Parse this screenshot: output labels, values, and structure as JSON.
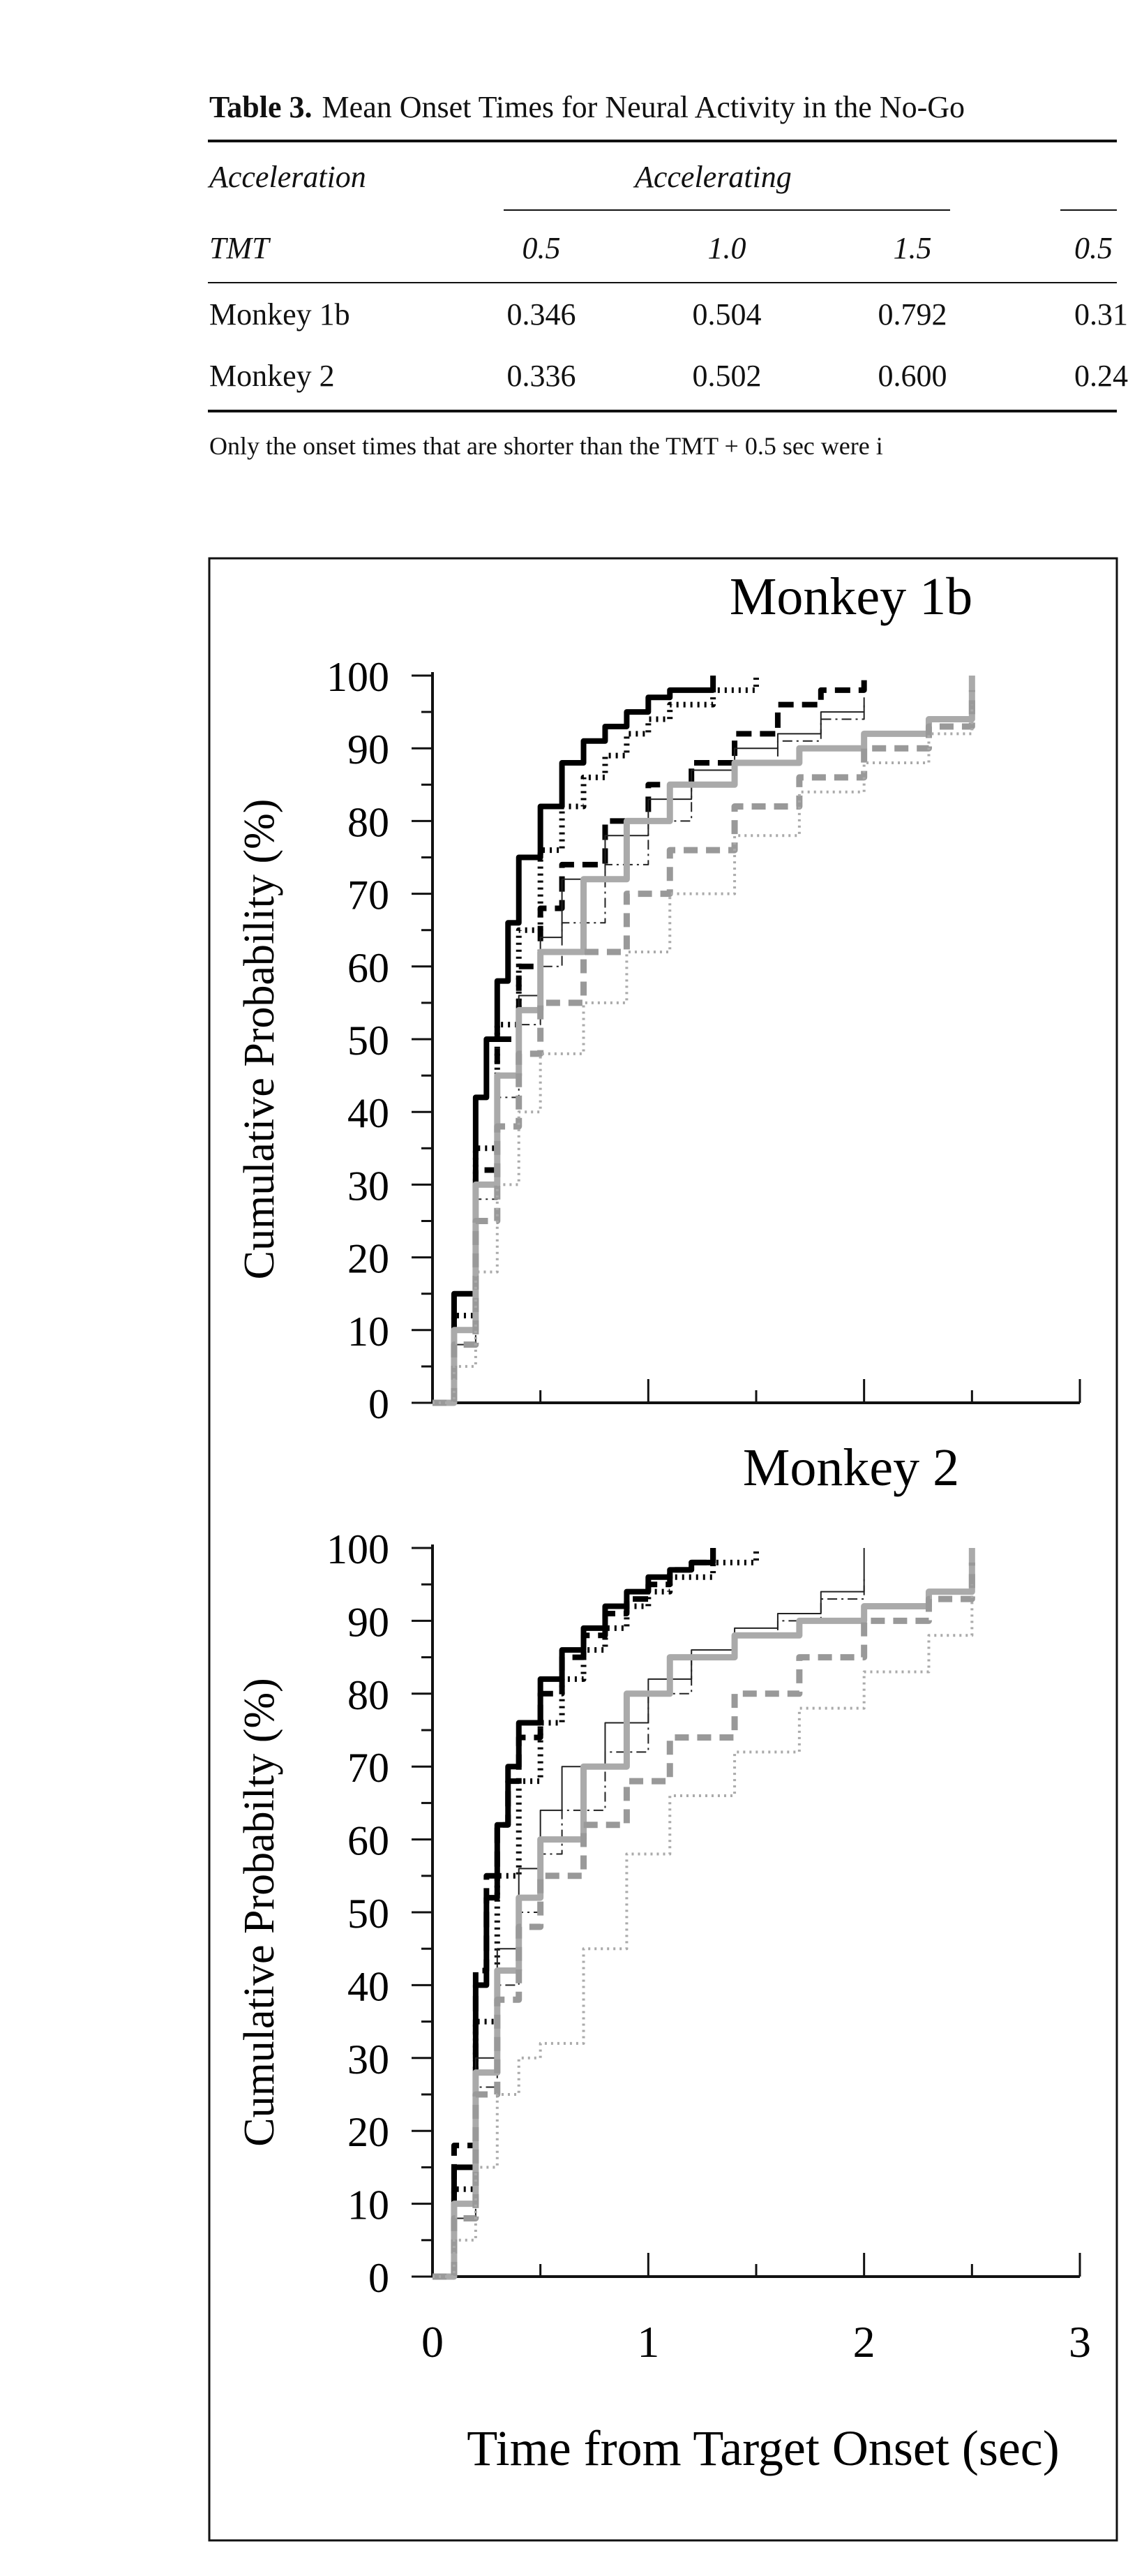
{
  "table": {
    "title_label": "Table 3.",
    "title_text": "Mean Onset Times for Neural Activity in the No-Go",
    "header_acceleration": "Acceleration",
    "header_group": "Accelerating",
    "header_tmt": "TMT",
    "tmt_values": [
      "0.5",
      "1.0",
      "1.5",
      "0.5"
    ],
    "rows": [
      {
        "label": "Monkey 1b",
        "values": [
          "0.346",
          "0.504",
          "0.792",
          "0.31"
        ]
      },
      {
        "label": "Monkey 2",
        "values": [
          "0.336",
          "0.502",
          "0.600",
          "0.24"
        ]
      }
    ],
    "note": "Only the onset times that are shorter than the TMT + 0.5 sec were i"
  },
  "chart_data": [
    {
      "type": "line",
      "title": "Monkey 1b",
      "ylabel": "Cumulative Probability (%)",
      "xlabel": "",
      "xlim": [
        0,
        3
      ],
      "ylim": [
        0,
        100
      ],
      "yticks": [
        "0",
        "10",
        "20",
        "30",
        "40",
        "50",
        "60",
        "70",
        "80",
        "90",
        "100"
      ],
      "xticks": [],
      "series": [
        {
          "color": "#000000",
          "style": "solid-thick",
          "x": [
            0,
            0.1,
            0.2,
            0.25,
            0.3,
            0.35,
            0.4,
            0.5,
            0.6,
            0.7,
            0.8,
            0.9,
            1.0,
            1.1,
            1.2,
            1.3
          ],
          "y": [
            0,
            15,
            42,
            50,
            58,
            66,
            75,
            82,
            88,
            91,
            93,
            95,
            97,
            98,
            98,
            100
          ]
        },
        {
          "color": "#000000",
          "style": "dotted-thick",
          "x": [
            0,
            0.1,
            0.2,
            0.3,
            0.4,
            0.5,
            0.6,
            0.7,
            0.8,
            0.9,
            1.0,
            1.1,
            1.3,
            1.5
          ],
          "y": [
            0,
            12,
            35,
            52,
            65,
            76,
            82,
            86,
            89,
            92,
            94,
            96,
            98,
            100
          ]
        },
        {
          "color": "#000000",
          "style": "dashed-thick",
          "x": [
            0,
            0.1,
            0.2,
            0.3,
            0.4,
            0.5,
            0.6,
            0.8,
            1.0,
            1.2,
            1.4,
            1.6,
            1.8,
            2.0
          ],
          "y": [
            0,
            10,
            32,
            50,
            60,
            68,
            74,
            80,
            85,
            88,
            92,
            96,
            98,
            100
          ]
        },
        {
          "color": "#222222",
          "style": "solid-thin",
          "x": [
            0,
            0.1,
            0.2,
            0.3,
            0.4,
            0.5,
            0.6,
            0.8,
            1.0,
            1.2,
            1.4,
            1.6,
            1.8,
            2.0
          ],
          "y": [
            0,
            10,
            30,
            45,
            56,
            64,
            72,
            78,
            83,
            87,
            90,
            92,
            95,
            97
          ]
        },
        {
          "color": "#222222",
          "style": "dashdot-thin",
          "x": [
            0,
            0.1,
            0.2,
            0.3,
            0.4,
            0.5,
            0.6,
            0.8,
            1.0,
            1.2,
            1.4,
            1.6,
            1.8,
            2.0
          ],
          "y": [
            0,
            8,
            28,
            42,
            52,
            60,
            66,
            74,
            80,
            85,
            88,
            91,
            94,
            96
          ]
        },
        {
          "color": "#aaaaaa",
          "style": "solid-gray",
          "x": [
            0,
            0.1,
            0.2,
            0.3,
            0.4,
            0.5,
            0.7,
            0.9,
            1.1,
            1.4,
            1.7,
            2.0,
            2.3,
            2.5
          ],
          "y": [
            0,
            10,
            30,
            45,
            54,
            62,
            72,
            80,
            85,
            88,
            90,
            92,
            94,
            100
          ]
        },
        {
          "color": "#999999",
          "style": "dashed-gray",
          "x": [
            0,
            0.1,
            0.2,
            0.3,
            0.4,
            0.5,
            0.7,
            0.9,
            1.1,
            1.4,
            1.7,
            2.0,
            2.3,
            2.5
          ],
          "y": [
            0,
            8,
            25,
            38,
            48,
            55,
            62,
            70,
            76,
            82,
            86,
            90,
            93,
            98
          ]
        },
        {
          "color": "#aaaaaa",
          "style": "dotted-gray",
          "x": [
            0,
            0.1,
            0.2,
            0.3,
            0.4,
            0.5,
            0.7,
            0.9,
            1.1,
            1.4,
            1.7,
            2.0,
            2.3,
            2.5
          ],
          "y": [
            0,
            5,
            18,
            30,
            40,
            48,
            55,
            62,
            70,
            78,
            84,
            88,
            92,
            96
          ]
        }
      ]
    },
    {
      "type": "line",
      "title": "Monkey 2",
      "ylabel": "Cumulative Probabilty (%)",
      "xlabel": "Time from Target Onset (sec)",
      "xlim": [
        0,
        3
      ],
      "ylim": [
        0,
        100
      ],
      "yticks": [
        "0",
        "10",
        "20",
        "30",
        "40",
        "50",
        "60",
        "70",
        "80",
        "90",
        "100"
      ],
      "xticks": [
        "0",
        "1",
        "2",
        "3"
      ],
      "series": [
        {
          "color": "#000000",
          "style": "solid-thick",
          "x": [
            0,
            0.1,
            0.2,
            0.25,
            0.3,
            0.35,
            0.4,
            0.5,
            0.6,
            0.7,
            0.8,
            0.9,
            1.0,
            1.1,
            1.2,
            1.3
          ],
          "y": [
            0,
            15,
            40,
            52,
            62,
            70,
            76,
            82,
            86,
            89,
            92,
            94,
            96,
            97,
            98,
            100
          ]
        },
        {
          "color": "#000000",
          "style": "dashed-thick",
          "x": [
            0,
            0.1,
            0.2,
            0.25,
            0.3,
            0.35,
            0.4,
            0.5,
            0.6,
            0.7,
            0.8,
            0.9,
            1.0,
            1.1,
            1.2,
            1.3
          ],
          "y": [
            0,
            18,
            42,
            55,
            62,
            68,
            74,
            80,
            85,
            88,
            91,
            93,
            95,
            97,
            98,
            100
          ]
        },
        {
          "color": "#000000",
          "style": "dotted-thick",
          "x": [
            0,
            0.1,
            0.2,
            0.3,
            0.4,
            0.5,
            0.6,
            0.7,
            0.8,
            0.9,
            1.0,
            1.1,
            1.3,
            1.5
          ],
          "y": [
            0,
            12,
            35,
            55,
            68,
            76,
            82,
            86,
            89,
            92,
            94,
            96,
            98,
            100
          ]
        },
        {
          "color": "#222222",
          "style": "solid-thin",
          "x": [
            0,
            0.1,
            0.2,
            0.3,
            0.4,
            0.5,
            0.6,
            0.8,
            1.0,
            1.2,
            1.4,
            1.6,
            1.8,
            2.0
          ],
          "y": [
            0,
            10,
            30,
            45,
            56,
            64,
            70,
            76,
            82,
            86,
            89,
            91,
            94,
            100
          ]
        },
        {
          "color": "#222222",
          "style": "dashdot-thin",
          "x": [
            0,
            0.1,
            0.2,
            0.3,
            0.4,
            0.5,
            0.6,
            0.8,
            1.0,
            1.2,
            1.4,
            1.6,
            1.8,
            2.0
          ],
          "y": [
            0,
            8,
            26,
            40,
            50,
            58,
            64,
            72,
            80,
            85,
            88,
            90,
            93,
            96
          ]
        },
        {
          "color": "#aaaaaa",
          "style": "solid-gray",
          "x": [
            0,
            0.1,
            0.2,
            0.3,
            0.4,
            0.5,
            0.7,
            0.9,
            1.1,
            1.4,
            1.7,
            2.0,
            2.3,
            2.5
          ],
          "y": [
            0,
            10,
            28,
            42,
            52,
            60,
            70,
            80,
            85,
            88,
            90,
            92,
            94,
            100
          ]
        },
        {
          "color": "#999999",
          "style": "dashed-gray",
          "x": [
            0,
            0.1,
            0.2,
            0.3,
            0.4,
            0.5,
            0.7,
            0.9,
            1.1,
            1.4,
            1.7,
            2.0,
            2.3,
            2.5
          ],
          "y": [
            0,
            8,
            25,
            38,
            48,
            55,
            62,
            68,
            74,
            80,
            85,
            90,
            93,
            98
          ]
        },
        {
          "color": "#aaaaaa",
          "style": "dotted-gray",
          "x": [
            0,
            0.1,
            0.2,
            0.3,
            0.4,
            0.5,
            0.7,
            0.9,
            1.1,
            1.4,
            1.7,
            2.0,
            2.3,
            2.5
          ],
          "y": [
            0,
            5,
            15,
            25,
            30,
            32,
            45,
            58,
            66,
            72,
            78,
            83,
            88,
            95
          ]
        }
      ]
    }
  ]
}
